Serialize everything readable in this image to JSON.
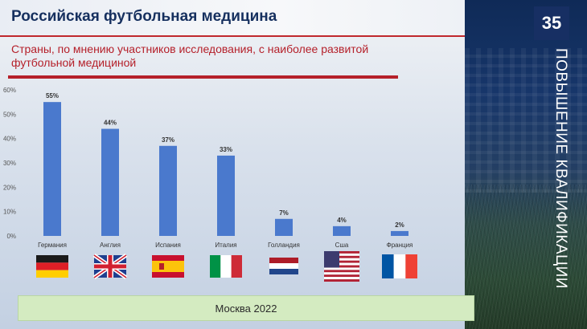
{
  "slide": {
    "title": "Российская футбольная медицина",
    "subtitle": "Страны, по мнению участников исследования,  с наиболее развитой футбольной медициной",
    "page_number": "35",
    "side_label": "ПОВЫШЕНИЕ КВАЛИФИКАЦИИ",
    "footer": "Москва 2022"
  },
  "colors": {
    "bar": "#4a79cd",
    "title": "#16305f",
    "accent": "#b5202a",
    "footer_bg": "#d4ebc1"
  },
  "chart_data": {
    "type": "bar",
    "categories": [
      "Германия",
      "Англия",
      "Испания",
      "Италия",
      "Голландия",
      "Сша",
      "Франция"
    ],
    "values": [
      55,
      44,
      37,
      33,
      7,
      4,
      2
    ],
    "data_labels": [
      "55%",
      "44%",
      "37%",
      "33%",
      "7%",
      "4%",
      "2%"
    ],
    "y_ticks": [
      0,
      10,
      20,
      30,
      40,
      50,
      60
    ],
    "y_tick_labels": [
      "0%",
      "10%",
      "20%",
      "30%",
      "40%",
      "50%",
      "60%"
    ],
    "ylim": [
      0,
      60
    ],
    "grid": false,
    "flags": [
      "germany-flag",
      "uk-flag",
      "spain-flag",
      "italy-flag",
      "netherlands-flag",
      "usa-flag",
      "france-flag"
    ]
  }
}
